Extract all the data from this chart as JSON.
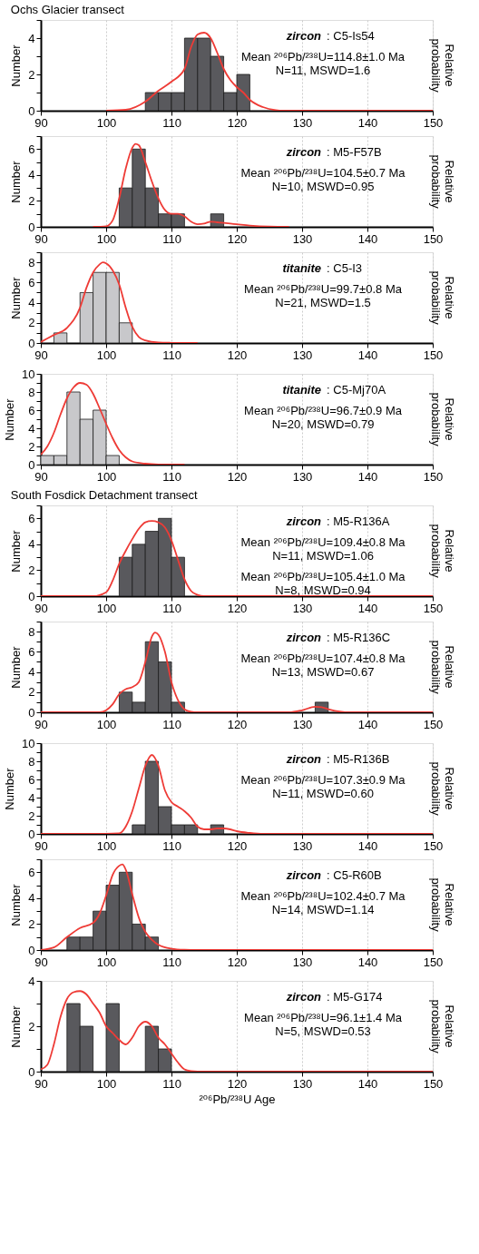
{
  "chart_data": [
    {
      "type": "histogram",
      "title": "Ochs Glacier transect",
      "ylabel": "Number",
      "y2label": "Relative probability",
      "bins": [
        106,
        108,
        110,
        112,
        114,
        116,
        118,
        120,
        122
      ],
      "values": [
        1,
        1,
        1,
        4,
        4,
        3,
        1,
        2
      ],
      "color": "#59595d",
      "series": [
        {
          "type": "line",
          "color": "#ee3b36",
          "x": [
            100,
            103,
            106,
            108,
            110,
            112,
            113,
            114,
            115,
            116,
            117,
            118,
            119,
            120,
            121,
            122,
            124,
            126,
            127,
            150
          ],
          "values": [
            0,
            0.05,
            0.5,
            1.1,
            1.6,
            2.3,
            3.5,
            4.2,
            4.3,
            4.0,
            3.2,
            2.3,
            1.7,
            1.3,
            1.0,
            0.6,
            0.2,
            0.03,
            0,
            0
          ]
        }
      ],
      "xlim": [
        90,
        150
      ],
      "xticks": [
        90,
        100,
        110,
        120,
        130,
        140,
        150
      ],
      "ylim": [
        0,
        5
      ],
      "yticks": [
        0,
        {
          "value": 1,
          "label": null
        },
        2,
        {
          "value": 3,
          "label": null
        },
        4,
        {
          "value": 5,
          "label": null
        }
      ],
      "grid": "x",
      "annotations": [
        "zircon",
        ": C5-Is54",
        "Mean ²⁰⁶Pb/²³⁸U=114.8±1.0 Ma",
        "N=11, MSWD=1.6"
      ]
    },
    {
      "type": "histogram",
      "ylabel": "Number",
      "y2label": "Relative probability",
      "bins": [
        102,
        104,
        106,
        108,
        110,
        112,
        114,
        116,
        118
      ],
      "values": [
        3,
        6,
        3,
        1,
        1,
        0,
        0,
        1
      ],
      "color": "#59595d",
      "series": [
        {
          "type": "line",
          "color": "#ee3b36",
          "x": [
            98,
            100,
            101,
            102,
            103,
            104,
            104.5,
            105,
            106,
            107,
            108,
            109,
            110,
            111,
            112,
            113,
            114,
            115,
            116,
            117,
            118,
            119,
            120,
            122,
            125,
            128
          ],
          "values": [
            0,
            0.05,
            0.5,
            2.2,
            4.5,
            6.1,
            6.4,
            6.3,
            5,
            3.5,
            2.2,
            1.3,
            1.0,
            1.0,
            0.8,
            0.4,
            0.2,
            0.25,
            0.4,
            0.35,
            0.3,
            0.25,
            0.2,
            0.1,
            0.02,
            0
          ]
        }
      ],
      "xlim": [
        90,
        150
      ],
      "xticks": [
        90,
        100,
        110,
        120,
        130,
        140,
        150
      ],
      "ylim": [
        0,
        7
      ],
      "yticks": [
        0,
        {
          "value": 1,
          "label": null
        },
        2,
        {
          "value": 3,
          "label": null
        },
        4,
        {
          "value": 5,
          "label": null
        },
        6,
        {
          "value": 7,
          "label": null
        }
      ],
      "grid": "x",
      "annotations": [
        "zircon",
        ": M5-F57B",
        "Mean ²⁰⁶Pb/²³⁸U=104.5±0.7 Ma",
        "N=10, MSWD=0.95"
      ]
    },
    {
      "type": "histogram",
      "ylabel": "Number",
      "y2label": "Relative probability",
      "bins": [
        92,
        94,
        96,
        98,
        100,
        102,
        104
      ],
      "values": [
        1,
        0,
        5,
        7,
        7,
        2
      ],
      "color": "#c8c8cb",
      "series": [
        {
          "type": "line",
          "color": "#ee3b36",
          "x": [
            90,
            92,
            94,
            96,
            97,
            98,
            99,
            99.5,
            100,
            101,
            102,
            103,
            104,
            105,
            106,
            108,
            110,
            114
          ],
          "values": [
            0.1,
            0.8,
            1.5,
            3.5,
            5.5,
            7,
            7.8,
            8,
            7.9,
            7.2,
            5.8,
            3.5,
            1.6,
            0.6,
            0.25,
            0.05,
            0.02,
            0
          ]
        }
      ],
      "xlim": [
        90,
        150
      ],
      "xticks": [
        90,
        100,
        110,
        120,
        130,
        140,
        150
      ],
      "ylim": [
        0,
        9
      ],
      "yticks": [
        0,
        {
          "value": 1,
          "label": null
        },
        2,
        {
          "value": 3,
          "label": null
        },
        4,
        {
          "value": 5,
          "label": null
        },
        6,
        {
          "value": 7,
          "label": null
        },
        8,
        {
          "value": 9,
          "label": null
        }
      ],
      "grid": "x",
      "annotations": [
        "titanite",
        ": C5-I3",
        "Mean ²⁰⁶Pb/²³⁸U=99.7±0.8 Ma",
        "N=21, MSWD=1.5"
      ]
    },
    {
      "type": "histogram",
      "ylabel": "Number",
      "y2label": "Relative probability",
      "bins": [
        90,
        92,
        94,
        96,
        98,
        100,
        102
      ],
      "values": [
        1,
        1,
        8,
        5,
        6,
        1
      ],
      "color": "#c8c8cb",
      "series": [
        {
          "type": "line",
          "color": "#ee3b36",
          "x": [
            90,
            91,
            92,
            93,
            94,
            95,
            96,
            97,
            98,
            99,
            100,
            101,
            102,
            103,
            104,
            106,
            108,
            112
          ],
          "values": [
            1.1,
            2,
            3.5,
            5.5,
            7.3,
            8.5,
            9,
            8.8,
            7.8,
            6.2,
            4.5,
            2.9,
            1.6,
            0.8,
            0.35,
            0.1,
            0.02,
            0
          ]
        }
      ],
      "xlim": [
        90,
        150
      ],
      "xticks": [
        90,
        100,
        110,
        120,
        130,
        140,
        150
      ],
      "ylim": [
        0,
        10
      ],
      "yticks": [
        0,
        {
          "value": 1,
          "label": null
        },
        2,
        {
          "value": 3,
          "label": null
        },
        4,
        {
          "value": 5,
          "label": null
        },
        6,
        {
          "value": 7,
          "label": null
        },
        8,
        {
          "value": 9,
          "label": null
        },
        10
      ],
      "grid": "x",
      "annotations": [
        "titanite",
        ": C5-Mj70A",
        "Mean ²⁰⁶Pb/²³⁸U=96.7±0.9 Ma",
        "N=20, MSWD=0.79"
      ]
    },
    {
      "type": "histogram",
      "title": "South Fosdick Detachment transect",
      "ylabel": "Number",
      "y2label": "Relative probability",
      "bins": [
        102,
        104,
        106,
        108,
        110,
        112
      ],
      "values": [
        3,
        4,
        5,
        6,
        3
      ],
      "color": "#59595d",
      "series": [
        {
          "type": "line",
          "color": "#ee3b36",
          "x": [
            90,
            98,
            100,
            101,
            102,
            103,
            104,
            105,
            106,
            107,
            108,
            109,
            110,
            111,
            112,
            113,
            114,
            115,
            150
          ],
          "values": [
            0,
            0,
            0.3,
            1.2,
            2.5,
            3.5,
            4.4,
            5.2,
            5.7,
            5.8,
            5.7,
            5.3,
            4.3,
            2.8,
            1.3,
            0.4,
            0.1,
            0,
            0
          ]
        }
      ],
      "xlim": [
        90,
        150
      ],
      "xticks": [
        90,
        100,
        110,
        120,
        130,
        140,
        150
      ],
      "ylim": [
        0,
        7
      ],
      "yticks": [
        0,
        {
          "value": 1,
          "label": null
        },
        2,
        {
          "value": 3,
          "label": null
        },
        4,
        {
          "value": 5,
          "label": null
        },
        6,
        {
          "value": 7,
          "label": null
        }
      ],
      "grid": "x",
      "annotations": [
        "zircon",
        ": M5-R136A",
        "Mean ²⁰⁶Pb/²³⁸U=109.4±0.8 Ma",
        "N=11, MSWD=1.06",
        "Mean ²⁰⁶Pb/²³⁸U=105.4±1.0 Ma",
        "N=8, MSWD=0.94"
      ]
    },
    {
      "type": "histogram",
      "ylabel": "Number",
      "y2label": "Relative probability",
      "bins": [
        102,
        104,
        106,
        108,
        110,
        112,
        114,
        116,
        118,
        120,
        122,
        124,
        126,
        128,
        130,
        132,
        134
      ],
      "values": [
        2,
        1,
        7,
        5,
        1,
        0,
        0,
        0,
        0,
        0,
        0,
        0,
        0,
        0,
        0,
        1
      ],
      "color": "#59595d",
      "series": [
        {
          "type": "line",
          "color": "#ee3b36",
          "x": [
            90,
            99,
            100,
            101,
            102,
            103,
            104,
            105,
            106,
            107,
            107.5,
            108,
            109,
            110,
            111,
            112,
            113,
            114,
            128,
            130,
            132,
            133,
            134,
            136,
            137,
            150
          ],
          "values": [
            0,
            0,
            0.2,
            0.8,
            1.8,
            2.3,
            2.5,
            3,
            5,
            7.5,
            7.9,
            7.7,
            6,
            3,
            1.2,
            0.3,
            0.05,
            0,
            0,
            0.2,
            0.55,
            0.5,
            0.3,
            0.05,
            0,
            0
          ]
        }
      ],
      "xlim": [
        90,
        150
      ],
      "xticks": [
        90,
        100,
        110,
        120,
        130,
        140,
        150
      ],
      "ylim": [
        0,
        9
      ],
      "yticks": [
        0,
        {
          "value": 1,
          "label": null
        },
        2,
        {
          "value": 3,
          "label": null
        },
        4,
        {
          "value": 5,
          "label": null
        },
        6,
        {
          "value": 7,
          "label": null
        },
        8,
        {
          "value": 9,
          "label": null
        }
      ],
      "grid": "x",
      "annotations": [
        "zircon",
        ": M5-R136C",
        "Mean ²⁰⁶Pb/²³⁸U=107.4±0.8 Ma",
        "N=13, MSWD=0.67"
      ]
    },
    {
      "type": "histogram",
      "ylabel": "Number",
      "y2label": "Relative probability",
      "bins": [
        104,
        106,
        108,
        110,
        112,
        114,
        116,
        118
      ],
      "values": [
        1,
        8,
        3,
        1,
        1,
        0,
        1
      ],
      "color": "#59595d",
      "series": [
        {
          "type": "line",
          "color": "#ee3b36",
          "x": [
            90,
            100,
            102,
            103,
            104,
            105,
            106,
            107,
            108,
            109,
            110,
            111,
            112,
            113,
            114,
            115,
            116,
            117,
            118,
            119,
            120,
            122,
            124,
            150
          ],
          "values": [
            0,
            0,
            0.05,
            0.8,
            2.5,
            5,
            7.5,
            8.7,
            7.5,
            4.8,
            3.5,
            3.0,
            2.5,
            1.8,
            0.8,
            0.5,
            0.5,
            0.6,
            0.6,
            0.5,
            0.3,
            0.1,
            0,
            0
          ]
        }
      ],
      "xlim": [
        90,
        150
      ],
      "xticks": [
        90,
        100,
        110,
        120,
        130,
        140,
        150
      ],
      "ylim": [
        0,
        10
      ],
      "yticks": [
        0,
        {
          "value": 1,
          "label": null
        },
        2,
        {
          "value": 3,
          "label": null
        },
        4,
        {
          "value": 5,
          "label": null
        },
        6,
        {
          "value": 7,
          "label": null
        },
        8,
        {
          "value": 9,
          "label": null
        },
        10
      ],
      "grid": "x",
      "annotations": [
        "zircon",
        ": M5-R136B",
        "Mean ²⁰⁶Pb/²³⁸U=107.3±0.9 Ma",
        "N=11, MSWD=0.60"
      ]
    },
    {
      "type": "histogram",
      "ylabel": "Number",
      "y2label": "Relative probability",
      "bins": [
        94,
        96,
        98,
        100,
        102,
        104,
        106,
        108
      ],
      "values": [
        1,
        1,
        3,
        5,
        6,
        2,
        1
      ],
      "color": "#59595d",
      "series": [
        {
          "type": "line",
          "color": "#ee3b36",
          "x": [
            90,
            92,
            94,
            96,
            98,
            99,
            100,
            101,
            102,
            102.5,
            103,
            104,
            105,
            106,
            107,
            108,
            110,
            112,
            114,
            150
          ],
          "values": [
            0,
            0.2,
            1,
            1.7,
            2.1,
            2.8,
            4.2,
            5.8,
            6.5,
            6.6,
            6.2,
            4.3,
            2.5,
            1.4,
            0.8,
            0.4,
            0.1,
            0.02,
            0,
            0
          ]
        }
      ],
      "xlim": [
        90,
        150
      ],
      "xticks": [
        90,
        100,
        110,
        120,
        130,
        140,
        150
      ],
      "ylim": [
        0,
        7
      ],
      "yticks": [
        0,
        {
          "value": 1,
          "label": null
        },
        2,
        {
          "value": 3,
          "label": null
        },
        4,
        {
          "value": 5,
          "label": null
        },
        6,
        {
          "value": 7,
          "label": null
        }
      ],
      "grid": "x",
      "annotations": [
        "zircon",
        ": C5-R60B",
        "Mean ²⁰⁶Pb/²³⁸U=102.4±0.7 Ma",
        "N=14, MSWD=1.14"
      ]
    },
    {
      "type": "histogram",
      "xlabel": "²⁰⁶Pb/²³⁸U Age",
      "ylabel": "Number",
      "y2label": "Relative probability",
      "bins": [
        94,
        96,
        98,
        100,
        102,
        104,
        106,
        108,
        110
      ],
      "values": [
        3,
        2,
        0,
        3,
        0,
        0,
        2,
        1
      ],
      "color": "#59595d",
      "series": [
        {
          "type": "line",
          "color": "#ee3b36",
          "x": [
            90,
            91,
            92,
            93,
            94,
            95,
            96,
            97,
            98,
            99,
            100,
            101,
            102,
            103,
            104,
            105,
            106,
            107,
            108,
            109,
            110,
            111,
            112,
            113,
            114,
            150
          ],
          "values": [
            0.1,
            0.3,
            1.2,
            2.4,
            3.2,
            3.5,
            3.55,
            3.4,
            3.0,
            2.6,
            2.0,
            1.7,
            1.4,
            1.2,
            1.5,
            2.0,
            2.2,
            2.0,
            1.5,
            1.2,
            0.8,
            0.4,
            0.1,
            0.02,
            0,
            0
          ]
        }
      ],
      "xlim": [
        90,
        150
      ],
      "xticks": [
        90,
        100,
        110,
        120,
        130,
        140,
        150
      ],
      "ylim": [
        0,
        4
      ],
      "yticks": [
        0,
        {
          "value": 1,
          "label": null
        },
        2,
        {
          "value": 3,
          "label": null
        },
        4
      ],
      "grid": "x",
      "annotations": [
        "zircon",
        ": M5-G174",
        "Mean ²⁰⁶Pb/²³⁸U=96.1±1.4 Ma",
        "N=5, MSWD=0.53"
      ]
    }
  ]
}
